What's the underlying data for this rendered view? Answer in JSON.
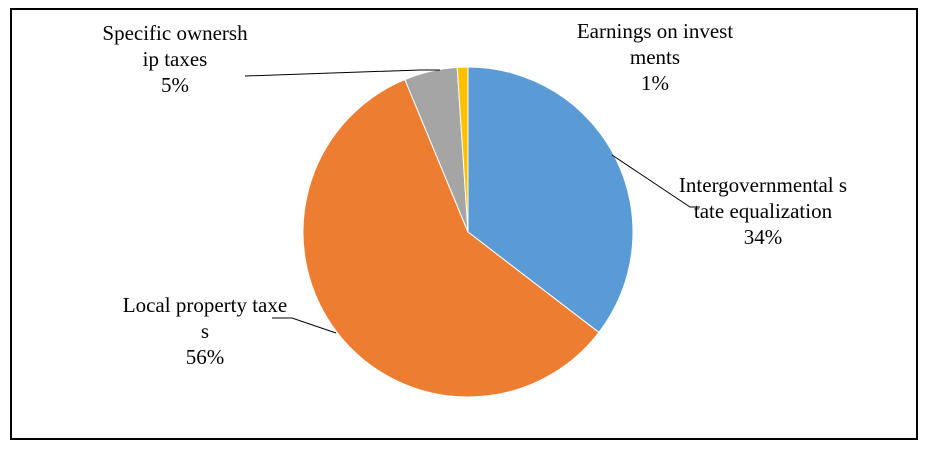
{
  "chart_data": {
    "type": "pie",
    "categories": [
      "Intergovernmental state equalization",
      "Local property taxes",
      "Specific ownership taxes",
      "Earnings on investments"
    ],
    "values": [
      34,
      56,
      5,
      1
    ],
    "value_labels": [
      "34%",
      "56%",
      "5%",
      "1%"
    ],
    "colors": [
      "#5b9bd5",
      "#ed7d31",
      "#a5a5a5",
      "#ffc000"
    ]
  }
}
